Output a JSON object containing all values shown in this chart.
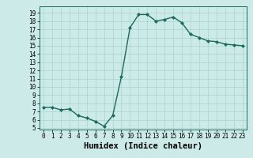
{
  "x": [
    0,
    1,
    2,
    3,
    4,
    5,
    6,
    7,
    8,
    9,
    10,
    11,
    12,
    13,
    14,
    15,
    16,
    17,
    18,
    19,
    20,
    21,
    22,
    23
  ],
  "y": [
    7.5,
    7.5,
    7.2,
    7.3,
    6.5,
    6.2,
    5.8,
    5.2,
    6.5,
    11.2,
    17.2,
    18.8,
    18.8,
    18.0,
    18.2,
    18.5,
    17.8,
    16.4,
    16.0,
    15.6,
    15.5,
    15.2,
    15.1,
    15.0
  ],
  "line_color": "#1a6b5a",
  "marker": "D",
  "marker_size": 2,
  "bg_color": "#cceae7",
  "grid_color": "#aad4d0",
  "xlabel": "Humidex (Indice chaleur)",
  "xlim": [
    -0.5,
    23.5
  ],
  "ylim": [
    4.8,
    19.8
  ],
  "yticks": [
    5,
    6,
    7,
    8,
    9,
    10,
    11,
    12,
    13,
    14,
    15,
    16,
    17,
    18,
    19
  ],
  "xticks": [
    0,
    1,
    2,
    3,
    4,
    5,
    6,
    7,
    8,
    9,
    10,
    11,
    12,
    13,
    14,
    15,
    16,
    17,
    18,
    19,
    20,
    21,
    22,
    23
  ],
  "tick_fontsize": 5.5,
  "xlabel_fontsize": 7.5,
  "line_width": 1.0
}
